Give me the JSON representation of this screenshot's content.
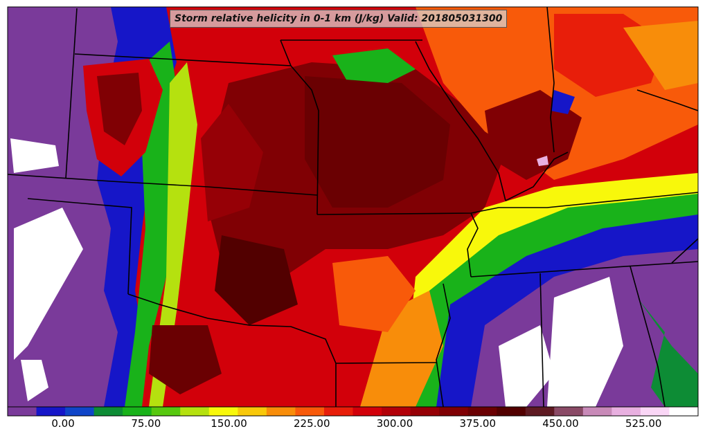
{
  "title": "Storm relative helicity in 0-1 km (J/kg) Valid: 201805031300",
  "colorbar": {
    "ticks": [
      {
        "value": "0.00",
        "frac": 0.0803
      },
      {
        "value": "75.00",
        "frac": 0.2004
      },
      {
        "value": "150.00",
        "frac": 0.3205
      },
      {
        "value": "225.00",
        "frac": 0.4406
      },
      {
        "value": "300.00",
        "frac": 0.5607
      },
      {
        "value": "375.00",
        "frac": 0.6808
      },
      {
        "value": "450.00",
        "frac": 0.8009
      },
      {
        "value": "525.00",
        "frac": 0.921
      }
    ],
    "colors": [
      "#7a3a9a",
      "#1616c8",
      "#0f45c8",
      "#0d8c35",
      "#19b21a",
      "#57c80f",
      "#b5e10f",
      "#f8f80b",
      "#f8c80a",
      "#f88d0a",
      "#f85a0a",
      "#e81e0a",
      "#d2000a",
      "#b20008",
      "#960006",
      "#800004",
      "#6a0002",
      "#520000",
      "#5e1a22",
      "#8a4a66",
      "#c88ab8",
      "#e8b0e0",
      "#fad6f6",
      "#ffffff"
    ]
  }
}
